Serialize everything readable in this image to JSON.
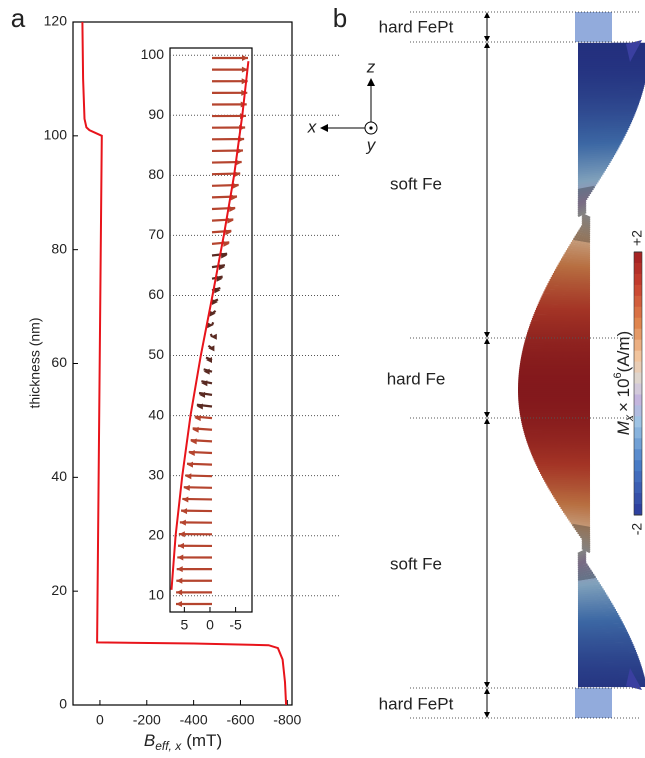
{
  "panel_labels": [
    "a",
    "b"
  ],
  "chart_data": [
    {
      "type": "line",
      "color": "#e8141b",
      "xlabel": {
        "symbol": "B",
        "subscript": "eff, x",
        "unit": "(mT)"
      },
      "ylabel": "thickness (nm)",
      "xlim": [
        115,
        -820
      ],
      "ylim": [
        0,
        120
      ],
      "xticks": [
        0,
        -200,
        -400,
        -600,
        -800
      ],
      "yticks": [
        0,
        20,
        40,
        60,
        80,
        100,
        120
      ],
      "x": [
        75,
        72,
        66,
        58,
        45,
        -8,
        12,
        -400,
        -720,
        -760,
        -780,
        -790,
        -795
      ],
      "y": [
        120,
        110,
        103,
        101.5,
        101,
        100,
        11,
        10.8,
        10.5,
        10,
        8,
        4,
        0
      ]
    },
    {
      "type": "line",
      "color": "#e8141b",
      "grid": true,
      "xlim": [
        7.8,
        -8.2
      ],
      "ylim": [
        7.3,
        101.2
      ],
      "xticks": [
        5,
        0,
        -5
      ],
      "yticks": [
        10,
        20,
        30,
        40,
        50,
        60,
        70,
        80,
        90,
        100
      ],
      "x": [
        7.5,
        6.7,
        5.4,
        3.8,
        1.8,
        -0.5,
        -2.7,
        -4.7,
        -6.3,
        -7.5
      ],
      "y": [
        11,
        20,
        30,
        40,
        50,
        60,
        70,
        80,
        90,
        99
      ]
    }
  ],
  "diagram": {
    "regions": [
      "hard FePt",
      "soft Fe",
      "hard Fe",
      "soft Fe",
      "hard FePt"
    ],
    "axes": {
      "x": "x",
      "y": "y",
      "z": "z"
    },
    "colorbar": {
      "lim": [
        -2,
        2
      ],
      "ticks": [
        {
          "value": 2,
          "label": "+2"
        },
        -2
      ],
      "label": {
        "symbol": "M",
        "subscript": "x",
        "times": "× 10",
        "exponent": "6",
        "unit": "(A/m)"
      }
    }
  }
}
